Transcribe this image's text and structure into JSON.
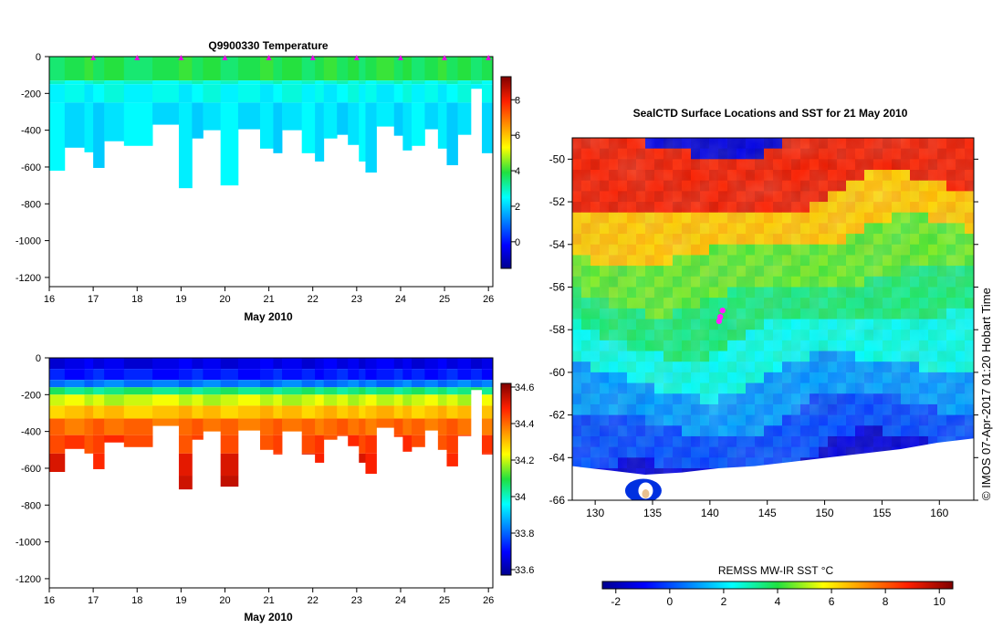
{
  "top_plot": {
    "title": "Q9900330  Temperature",
    "xlabel": "May 2010",
    "x_ticks": [
      "16",
      "17",
      "18",
      "19",
      "20",
      "21",
      "22",
      "23",
      "24",
      "25",
      "26"
    ],
    "y_ticks": [
      "0",
      "-200",
      "-400",
      "-600",
      "-800",
      "-1000",
      "-1200"
    ],
    "colorbar_ticks": [
      "8",
      "6",
      "4",
      "2",
      "0"
    ]
  },
  "bottom_plot": {
    "title": "",
    "xlabel": "May 2010",
    "x_ticks": [
      "16",
      "17",
      "18",
      "19",
      "20",
      "21",
      "22",
      "23",
      "24",
      "25",
      "26"
    ],
    "y_ticks": [
      "0",
      "-200",
      "-400",
      "-600",
      "-800",
      "-1000",
      "-1200"
    ],
    "colorbar_ticks": [
      "34.6",
      "34.4",
      "34.2",
      "34",
      "33.8",
      "33.6"
    ]
  },
  "map": {
    "title": "SealCTD Surface Locations and SST for 21 May 2010",
    "lon_ticks": [
      "130",
      "135",
      "140",
      "145",
      "150",
      "155",
      "160"
    ],
    "lat_ticks": [
      "-50",
      "-52",
      "-54",
      "-56",
      "-58",
      "-60",
      "-62",
      "-64",
      "-66"
    ],
    "colorbar_label": "REMSS MW-IR SST °C",
    "colorbar_ticks": [
      "-2",
      "0",
      "2",
      "4",
      "6",
      "8",
      "10"
    ],
    "credit": "© IMOS 07-Apr-2017 01:20 Hobart Time"
  },
  "chart_data": [
    {
      "type": "heatmap",
      "title": "Q9900330  Temperature",
      "xlabel": "May 2010",
      "ylabel": "",
      "xlim": [
        16,
        26.1
      ],
      "ylim": [
        -1250,
        0
      ],
      "colorbar_range": [
        -1.5,
        9.3
      ],
      "profile_marker_days": [
        17,
        18,
        19,
        20,
        21,
        22,
        23,
        24,
        25,
        26
      ],
      "profiles": [
        {
          "x0": 16.0,
          "x1": 16.35,
          "max_depth": 620
        },
        {
          "x0": 16.35,
          "x1": 16.8,
          "max_depth": 495
        },
        {
          "x0": 16.8,
          "x1": 17.0,
          "max_depth": 520
        },
        {
          "x0": 17.0,
          "x1": 17.25,
          "max_depth": 605
        },
        {
          "x0": 17.25,
          "x1": 17.7,
          "max_depth": 460
        },
        {
          "x0": 17.7,
          "x1": 18.35,
          "max_depth": 485
        },
        {
          "x0": 18.35,
          "x1": 18.95,
          "max_depth": 370
        },
        {
          "x0": 18.95,
          "x1": 19.25,
          "max_depth": 715
        },
        {
          "x0": 19.25,
          "x1": 19.5,
          "max_depth": 445
        },
        {
          "x0": 19.5,
          "x1": 19.9,
          "max_depth": 400
        },
        {
          "x0": 19.9,
          "x1": 20.3,
          "max_depth": 700
        },
        {
          "x0": 20.3,
          "x1": 20.8,
          "max_depth": 395
        },
        {
          "x0": 20.8,
          "x1": 21.1,
          "max_depth": 500
        },
        {
          "x0": 21.1,
          "x1": 21.3,
          "max_depth": 525
        },
        {
          "x0": 21.3,
          "x1": 21.75,
          "max_depth": 400
        },
        {
          "x0": 21.75,
          "x1": 22.05,
          "max_depth": 525
        },
        {
          "x0": 22.05,
          "x1": 22.25,
          "max_depth": 570
        },
        {
          "x0": 22.25,
          "x1": 22.55,
          "max_depth": 445
        },
        {
          "x0": 22.55,
          "x1": 22.8,
          "max_depth": 425
        },
        {
          "x0": 22.8,
          "x1": 23.05,
          "max_depth": 480
        },
        {
          "x0": 23.05,
          "x1": 23.2,
          "max_depth": 570
        },
        {
          "x0": 23.2,
          "x1": 23.45,
          "max_depth": 630
        },
        {
          "x0": 23.45,
          "x1": 23.85,
          "max_depth": 380
        },
        {
          "x0": 23.85,
          "x1": 24.05,
          "max_depth": 430
        },
        {
          "x0": 24.05,
          "x1": 24.25,
          "max_depth": 510
        },
        {
          "x0": 24.25,
          "x1": 24.55,
          "max_depth": 485
        },
        {
          "x0": 24.55,
          "x1": 24.85,
          "max_depth": 395
        },
        {
          "x0": 24.85,
          "x1": 25.05,
          "max_depth": 500
        },
        {
          "x0": 25.05,
          "x1": 25.3,
          "max_depth": 590
        },
        {
          "x0": 25.3,
          "x1": 25.6,
          "max_depth": 425
        },
        {
          "x0": 25.6,
          "x1": 25.85,
          "max_depth": 175
        },
        {
          "x0": 25.85,
          "x1": 26.1,
          "max_depth": 525
        }
      ],
      "layers": [
        {
          "top": 0,
          "bottom": 130,
          "value": 3.8
        },
        {
          "top": 130,
          "bottom": 150,
          "value": 2.8
        },
        {
          "top": 150,
          "bottom": 250,
          "value": 2.5
        },
        {
          "top": 250,
          "bottom": 1300,
          "value": 2.2
        }
      ]
    },
    {
      "type": "heatmap",
      "title": "",
      "xlabel": "May 2010",
      "ylabel": "",
      "xlim": [
        16,
        26.1
      ],
      "ylim": [
        -1250,
        0
      ],
      "colorbar_range": [
        33.57,
        34.62
      ],
      "layers": [
        {
          "top": 0,
          "bottom": 60,
          "value": 33.67
        },
        {
          "top": 60,
          "bottom": 120,
          "value": 33.72
        },
        {
          "top": 120,
          "bottom": 160,
          "value": 33.82
        },
        {
          "top": 160,
          "bottom": 200,
          "value": 34.05
        },
        {
          "top": 200,
          "bottom": 260,
          "value": 34.2
        },
        {
          "top": 260,
          "bottom": 330,
          "value": 34.3
        },
        {
          "top": 330,
          "bottom": 420,
          "value": 34.4
        },
        {
          "top": 420,
          "bottom": 520,
          "value": 34.45
        },
        {
          "top": 520,
          "bottom": 640,
          "value": 34.5
        },
        {
          "top": 640,
          "bottom": 1300,
          "value": 34.55
        }
      ]
    },
    {
      "type": "heatmap",
      "title": "SealCTD Surface Locations and SST for 21 May 2010",
      "xlabel": "",
      "ylabel": "",
      "xlim": [
        128,
        163
      ],
      "ylim": [
        -66,
        -49
      ],
      "colorbar_range": [
        -2.5,
        10.5
      ],
      "sst_bands_by_latitude": [
        {
          "lat_top": -49,
          "lat_bottom": -52,
          "sst": 9.0
        },
        {
          "lat_top": -52,
          "lat_bottom": -54,
          "sst": 6.5
        },
        {
          "lat_top": -54,
          "lat_bottom": -56,
          "sst": 4.5
        },
        {
          "lat_top": -56,
          "lat_bottom": -58,
          "sst": 3.5
        },
        {
          "lat_top": -58,
          "lat_bottom": -60,
          "sst": 2.5
        },
        {
          "lat_top": -60,
          "lat_bottom": -62,
          "sst": 1.0
        },
        {
          "lat_top": -62,
          "lat_bottom": -64,
          "sst": 0.0
        },
        {
          "lat_top": -64,
          "lat_bottom": -66,
          "sst": -1.5
        }
      ],
      "seal_locations": [
        {
          "lon": 140.9,
          "lat": -57.4
        },
        {
          "lon": 141.1,
          "lat": -57.1
        },
        {
          "lon": 140.8,
          "lat": -57.6
        }
      ]
    }
  ]
}
